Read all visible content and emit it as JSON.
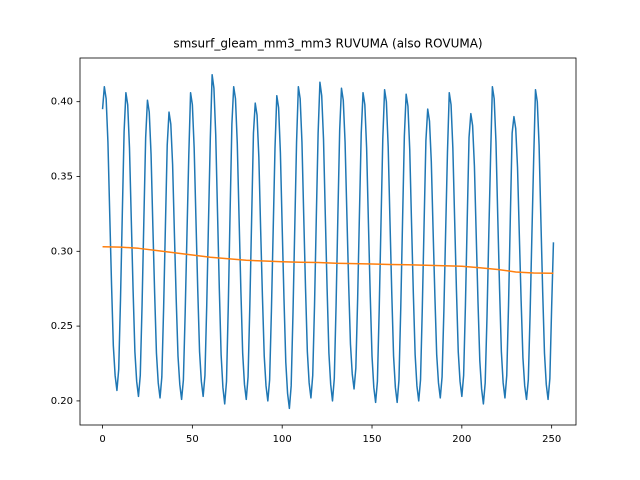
{
  "chart_data": {
    "type": "line",
    "title": "smsurf_gleam_mm3_mm3 RUVUMA (also ROVUMA)",
    "x": [
      0,
      1,
      2,
      3,
      4,
      5,
      6,
      7,
      8,
      9,
      10,
      11,
      12,
      13,
      14,
      15,
      16,
      17,
      18,
      19,
      20,
      21,
      22,
      23,
      24,
      25,
      26,
      27,
      28,
      29,
      30,
      31,
      32,
      33,
      34,
      35,
      36,
      37,
      38,
      39,
      40,
      41,
      42,
      43,
      44,
      45,
      46,
      47,
      48,
      49,
      50,
      51,
      52,
      53,
      54,
      55,
      56,
      57,
      58,
      59,
      60,
      61,
      62,
      63,
      64,
      65,
      66,
      67,
      68,
      69,
      70,
      71,
      72,
      73,
      74,
      75,
      76,
      77,
      78,
      79,
      80,
      81,
      82,
      83,
      84,
      85,
      86,
      87,
      88,
      89,
      90,
      91,
      92,
      93,
      94,
      95,
      96,
      97,
      98,
      99,
      100,
      101,
      102,
      103,
      104,
      105,
      106,
      107,
      108,
      109,
      110,
      111,
      112,
      113,
      114,
      115,
      116,
      117,
      118,
      119,
      120,
      121,
      122,
      123,
      124,
      125,
      126,
      127,
      128,
      129,
      130,
      131,
      132,
      133,
      134,
      135,
      136,
      137,
      138,
      139,
      140,
      141,
      142,
      143,
      144,
      145,
      146,
      147,
      148,
      149,
      150,
      151,
      152,
      153,
      154,
      155,
      156,
      157,
      158,
      159,
      160,
      161,
      162,
      163,
      164,
      165,
      166,
      167,
      168,
      169,
      170,
      171,
      172,
      173,
      174,
      175,
      176,
      177,
      178,
      179,
      180,
      181,
      182,
      183,
      184,
      185,
      186,
      187,
      188,
      189,
      190,
      191,
      192,
      193,
      194,
      195,
      196,
      197,
      198,
      199,
      200,
      201,
      202,
      203,
      204,
      205,
      206,
      207,
      208,
      209,
      210,
      211,
      212,
      213,
      214,
      215,
      216,
      217,
      218,
      219,
      220,
      221,
      222,
      223,
      224,
      225,
      226,
      227,
      228,
      229,
      230,
      231,
      232,
      233,
      234,
      235,
      236,
      237,
      238,
      239,
      240,
      241,
      242,
      243,
      244,
      245,
      246,
      247,
      248,
      249,
      250,
      251
    ],
    "series": [
      {
        "color": "#1f77b4",
        "values": [
          0.395,
          0.41,
          0.402,
          0.373,
          0.325,
          0.278,
          0.237,
          0.217,
          0.207,
          0.221,
          0.268,
          0.325,
          0.38,
          0.406,
          0.398,
          0.369,
          0.321,
          0.274,
          0.233,
          0.213,
          0.203,
          0.217,
          0.264,
          0.321,
          0.376,
          0.401,
          0.393,
          0.365,
          0.317,
          0.272,
          0.232,
          0.212,
          0.202,
          0.216,
          0.262,
          0.317,
          0.371,
          0.393,
          0.385,
          0.358,
          0.312,
          0.268,
          0.23,
          0.211,
          0.201,
          0.214,
          0.259,
          0.312,
          0.364,
          0.406,
          0.398,
          0.369,
          0.321,
          0.274,
          0.233,
          0.213,
          0.203,
          0.217,
          0.264,
          0.321,
          0.376,
          0.418,
          0.409,
          0.378,
          0.326,
          0.275,
          0.231,
          0.209,
          0.198,
          0.213,
          0.264,
          0.326,
          0.385,
          0.41,
          0.402,
          0.372,
          0.322,
          0.274,
          0.232,
          0.211,
          0.201,
          0.216,
          0.264,
          0.322,
          0.379,
          0.399,
          0.391,
          0.363,
          0.315,
          0.27,
          0.23,
          0.21,
          0.2,
          0.214,
          0.26,
          0.315,
          0.369,
          0.404,
          0.396,
          0.366,
          0.316,
          0.268,
          0.226,
          0.205,
          0.195,
          0.21,
          0.258,
          0.316,
          0.373,
          0.41,
          0.402,
          0.373,
          0.323,
          0.275,
          0.233,
          0.212,
          0.202,
          0.217,
          0.264,
          0.323,
          0.379,
          0.413,
          0.404,
          0.375,
          0.324,
          0.275,
          0.232,
          0.211,
          0.2,
          0.215,
          0.264,
          0.324,
          0.381,
          0.409,
          0.401,
          0.373,
          0.325,
          0.278,
          0.238,
          0.218,
          0.208,
          0.222,
          0.268,
          0.325,
          0.379,
          0.406,
          0.398,
          0.369,
          0.319,
          0.271,
          0.23,
          0.209,
          0.199,
          0.213,
          0.261,
          0.319,
          0.375,
          0.408,
          0.4,
          0.37,
          0.32,
          0.272,
          0.23,
          0.209,
          0.199,
          0.214,
          0.262,
          0.32,
          0.377,
          0.405,
          0.397,
          0.368,
          0.319,
          0.272,
          0.231,
          0.21,
          0.2,
          0.214,
          0.262,
          0.319,
          0.374,
          0.395,
          0.387,
          0.36,
          0.314,
          0.27,
          0.231,
          0.212,
          0.202,
          0.216,
          0.26,
          0.314,
          0.366,
          0.406,
          0.398,
          0.369,
          0.321,
          0.274,
          0.233,
          0.213,
          0.203,
          0.217,
          0.264,
          0.321,
          0.376,
          0.392,
          0.384,
          0.357,
          0.311,
          0.266,
          0.227,
          0.208,
          0.198,
          0.212,
          0.256,
          0.311,
          0.363,
          0.41,
          0.402,
          0.373,
          0.323,
          0.275,
          0.233,
          0.212,
          0.202,
          0.217,
          0.264,
          0.323,
          0.379,
          0.39,
          0.382,
          0.356,
          0.311,
          0.267,
          0.229,
          0.21,
          0.201,
          0.214,
          0.258,
          0.311,
          0.362,
          0.408,
          0.4,
          0.371,
          0.321,
          0.273,
          0.232,
          0.211,
          0.201,
          0.215,
          0.263,
          0.306
        ]
      },
      {
        "color": "#ff7f0e",
        "x": [
          0,
          10,
          20,
          30,
          40,
          50,
          60,
          70,
          80,
          90,
          100,
          110,
          120,
          130,
          140,
          150,
          160,
          170,
          180,
          190,
          200,
          210,
          220,
          230,
          240,
          250,
          251
        ],
        "values": [
          0.303,
          0.3028,
          0.302,
          0.3005,
          0.299,
          0.2975,
          0.296,
          0.295,
          0.294,
          0.2935,
          0.293,
          0.2927,
          0.2925,
          0.292,
          0.2918,
          0.2915,
          0.2912,
          0.291,
          0.2907,
          0.2903,
          0.29,
          0.289,
          0.2878,
          0.2862,
          0.2855,
          0.2853,
          0.2853
        ]
      }
    ],
    "xlim": [
      -12.55,
      263.55
    ],
    "xticks": [
      0,
      50,
      100,
      150,
      200,
      250
    ],
    "ylim": [
      0.1839,
      0.4292
    ],
    "yticks": [
      {
        "value": 0.2,
        "label": "0.20"
      },
      0.25,
      {
        "value": 0.3,
        "label": "0.30"
      },
      0.35,
      {
        "value": 0.4,
        "label": "0.40"
      }
    ]
  }
}
